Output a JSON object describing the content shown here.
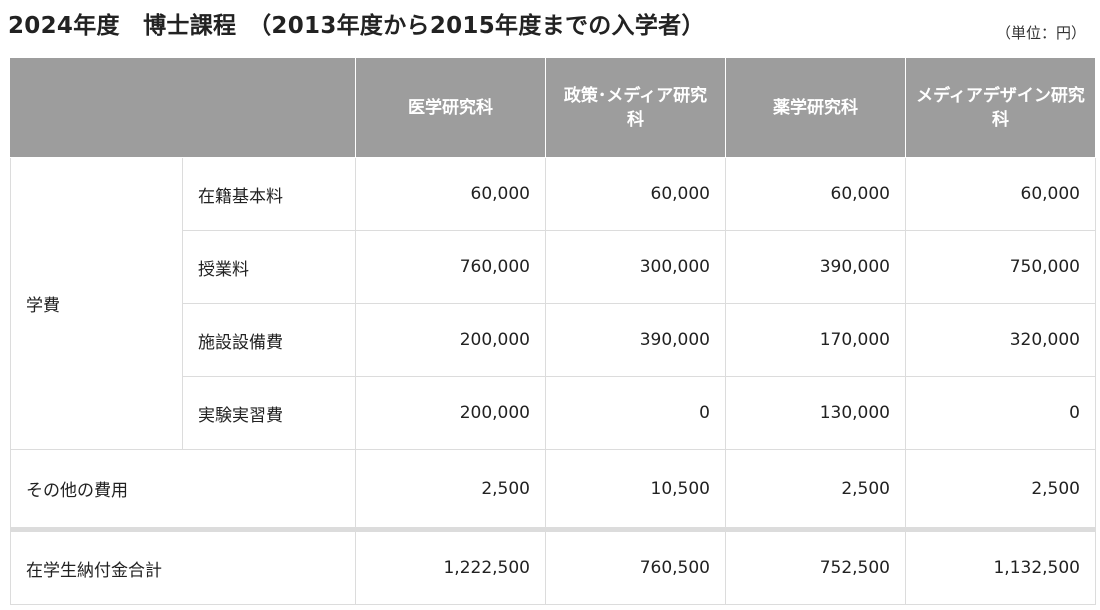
{
  "header": {
    "title": "2024年度　博士課程　（2013年度から2015年度までの入学者）",
    "unit_note": "（単位：円）"
  },
  "table": {
    "columns": [
      "医学研究科",
      "政策･メディア研究科",
      "薬学研究科",
      "メディアデザイン研究科"
    ],
    "group_label": "学費",
    "tuition_rows": [
      {
        "label": "在籍基本料",
        "values": [
          "60,000",
          "60,000",
          "60,000",
          "60,000"
        ]
      },
      {
        "label": "授業料",
        "values": [
          "760,000",
          "300,000",
          "390,000",
          "750,000"
        ]
      },
      {
        "label": "施設設備費",
        "values": [
          "200,000",
          "390,000",
          "170,000",
          "320,000"
        ]
      },
      {
        "label": "実験実習費",
        "values": [
          "200,000",
          "0",
          "130,000",
          "0"
        ]
      }
    ],
    "other_row": {
      "label": "その他の費用",
      "values": [
        "2,500",
        "10,500",
        "2,500",
        "2,500"
      ]
    },
    "total_row": {
      "label": "在学生納付金合計",
      "values": [
        "1,222,500",
        "760,500",
        "752,500",
        "1,132,500"
      ]
    }
  }
}
